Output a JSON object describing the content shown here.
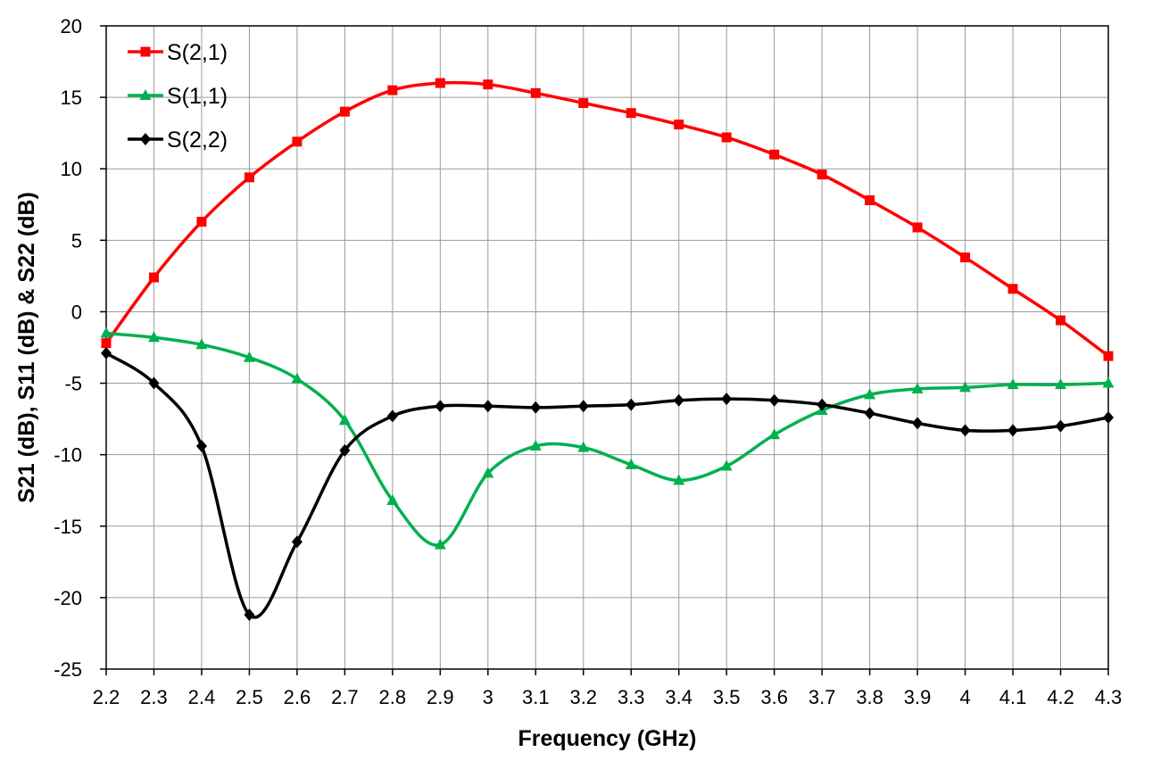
{
  "chart_data": {
    "type": "line",
    "title": "",
    "xlabel": "Frequency (GHz)",
    "ylabel": "S21 (dB), S11 (dB) & S22 (dB)",
    "xlim": [
      2.2,
      4.3
    ],
    "ylim": [
      -25,
      20
    ],
    "grid": true,
    "legend_position": "top-left",
    "x": [
      2.2,
      2.3,
      2.4,
      2.5,
      2.6,
      2.7,
      2.8,
      2.9,
      3.0,
      3.1,
      3.2,
      3.3,
      3.4,
      3.5,
      3.6,
      3.7,
      3.8,
      3.9,
      4.0,
      4.1,
      4.2,
      4.3
    ],
    "x_tick_labels": [
      "2.2",
      "2.3",
      "2.4",
      "2.5",
      "2.6",
      "2.7",
      "2.8",
      "2.9",
      "3",
      "3.1",
      "3.2",
      "3.3",
      "3.4",
      "3.5",
      "3.6",
      "3.7",
      "3.8",
      "3.9",
      "4",
      "4.1",
      "4.2",
      "4.3"
    ],
    "y_ticks": [
      -25,
      -20,
      -15,
      -10,
      -5,
      0,
      5,
      10,
      15,
      20
    ],
    "y_tick_labels": [
      "-25",
      "-20",
      "-15",
      "-10",
      "-5",
      "0",
      "5",
      "10",
      "15",
      "20"
    ],
    "series": [
      {
        "name": "S(2,1)",
        "color": "#ff0000",
        "marker": "square",
        "values": [
          -2.2,
          2.4,
          6.3,
          9.4,
          11.9,
          14.0,
          15.5,
          16.0,
          15.9,
          15.3,
          14.6,
          13.9,
          13.1,
          12.2,
          11.0,
          9.6,
          7.8,
          5.9,
          3.8,
          1.6,
          -0.6,
          -3.1
        ]
      },
      {
        "name": "S(1,1)",
        "color": "#00b050",
        "marker": "triangle",
        "values": [
          -1.5,
          -1.8,
          -2.3,
          -3.2,
          -4.7,
          -7.6,
          -13.2,
          -16.3,
          -11.3,
          -9.4,
          -9.5,
          -10.7,
          -11.8,
          -10.8,
          -8.6,
          -6.9,
          -5.8,
          -5.4,
          -5.3,
          -5.1,
          -5.1,
          -5.0
        ]
      },
      {
        "name": "S(2,2)",
        "color": "#000000",
        "marker": "diamond",
        "values": [
          -2.9,
          -5.0,
          -9.4,
          -21.2,
          -16.1,
          -9.7,
          -7.3,
          -6.6,
          -6.6,
          -6.7,
          -6.6,
          -6.5,
          -6.2,
          -6.1,
          -6.2,
          -6.5,
          -7.1,
          -7.8,
          -8.3,
          -8.3,
          -8.0,
          -7.4
        ]
      }
    ]
  }
}
